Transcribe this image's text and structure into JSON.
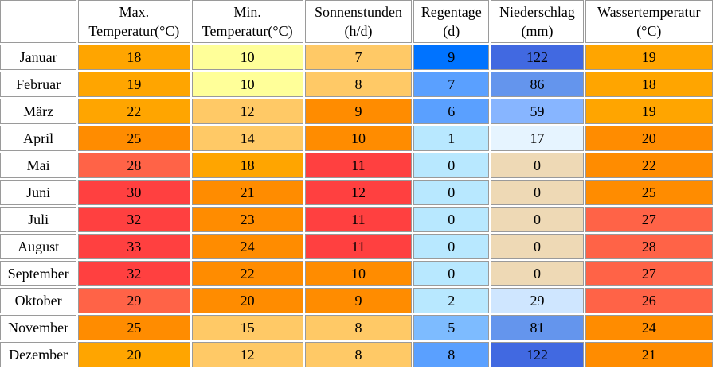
{
  "columns": [
    {
      "line1": "",
      "line2": ""
    },
    {
      "line1": "Max.",
      "line2": "Temperatur(°C)"
    },
    {
      "line1": "Min.",
      "line2": "Temperatur(°C)"
    },
    {
      "line1": "Sonnenstunden",
      "line2": "(h/d)"
    },
    {
      "line1": "Regentage",
      "line2": "(d)"
    },
    {
      "line1": "Niederschlag",
      "line2": "(mm)"
    },
    {
      "line1": "Wassertemperatur",
      "line2": "(°C)"
    }
  ],
  "rows": [
    {
      "month": "Januar",
      "values": [
        "18",
        "10",
        "7",
        "9",
        "122",
        "19"
      ],
      "colors": [
        "#ffa500",
        "#ffff99",
        "#ffc966",
        "#0073ff",
        "#4169e1",
        "#ffa500"
      ]
    },
    {
      "month": "Februar",
      "values": [
        "19",
        "10",
        "8",
        "7",
        "86",
        "18"
      ],
      "colors": [
        "#ffa500",
        "#ffff99",
        "#ffc966",
        "#5aa0ff",
        "#6495ed",
        "#ffa500"
      ]
    },
    {
      "month": "März",
      "values": [
        "22",
        "12",
        "9",
        "6",
        "59",
        "19"
      ],
      "colors": [
        "#ffa500",
        "#ffc966",
        "#ff8c00",
        "#5aa0ff",
        "#87b5ff",
        "#ffa500"
      ]
    },
    {
      "month": "April",
      "values": [
        "25",
        "14",
        "10",
        "1",
        "17",
        "20"
      ],
      "colors": [
        "#ff8c00",
        "#ffc966",
        "#ff8c00",
        "#b8e8ff",
        "#e6f4ff",
        "#ff8c00"
      ]
    },
    {
      "month": "Mai",
      "values": [
        "28",
        "18",
        "11",
        "0",
        "0",
        "22"
      ],
      "colors": [
        "#ff6347",
        "#ffa500",
        "#ff4040",
        "#b8e8ff",
        "#eed9b5",
        "#ff8c00"
      ]
    },
    {
      "month": "Juni",
      "values": [
        "30",
        "21",
        "12",
        "0",
        "0",
        "25"
      ],
      "colors": [
        "#ff4040",
        "#ff8c00",
        "#ff4040",
        "#b8e8ff",
        "#eed9b5",
        "#ff8c00"
      ]
    },
    {
      "month": "Juli",
      "values": [
        "32",
        "23",
        "11",
        "0",
        "0",
        "27"
      ],
      "colors": [
        "#ff4040",
        "#ff8c00",
        "#ff4040",
        "#b8e8ff",
        "#eed9b5",
        "#ff6347"
      ]
    },
    {
      "month": "August",
      "values": [
        "33",
        "24",
        "11",
        "0",
        "0",
        "28"
      ],
      "colors": [
        "#ff4040",
        "#ff8c00",
        "#ff4040",
        "#b8e8ff",
        "#eed9b5",
        "#ff6347"
      ]
    },
    {
      "month": "September",
      "values": [
        "32",
        "22",
        "10",
        "0",
        "0",
        "27"
      ],
      "colors": [
        "#ff4040",
        "#ff8c00",
        "#ff8c00",
        "#b8e8ff",
        "#eed9b5",
        "#ff6347"
      ]
    },
    {
      "month": "Oktober",
      "values": [
        "29",
        "20",
        "9",
        "2",
        "29",
        "26"
      ],
      "colors": [
        "#ff6347",
        "#ff8c00",
        "#ff8c00",
        "#b8e8ff",
        "#cfe6ff",
        "#ff6347"
      ]
    },
    {
      "month": "November",
      "values": [
        "25",
        "15",
        "8",
        "5",
        "81",
        "24"
      ],
      "colors": [
        "#ff8c00",
        "#ffc966",
        "#ffc966",
        "#7dbbff",
        "#6495ed",
        "#ff8c00"
      ]
    },
    {
      "month": "Dezember",
      "values": [
        "20",
        "12",
        "8",
        "8",
        "122",
        "21"
      ],
      "colors": [
        "#ffa500",
        "#ffc966",
        "#ffc966",
        "#5aa0ff",
        "#4169e1",
        "#ff8c00"
      ]
    }
  ]
}
